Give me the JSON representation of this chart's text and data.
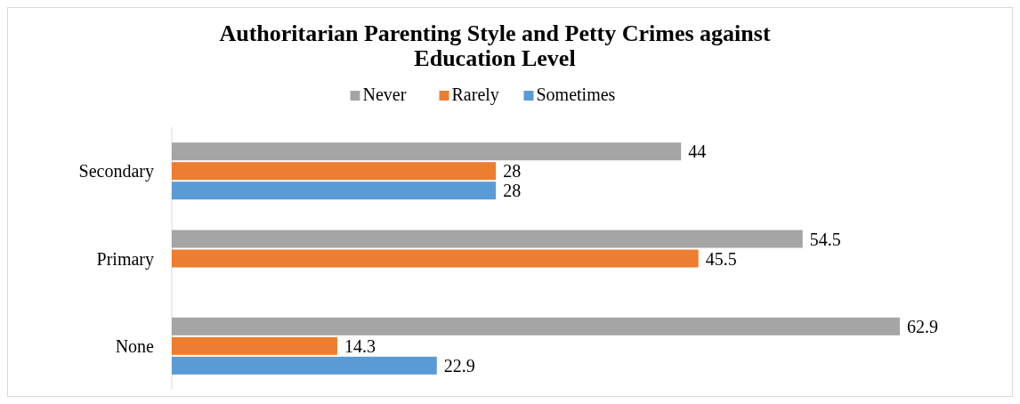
{
  "chart_data": {
    "type": "bar",
    "orientation": "horizontal",
    "title": "Authoritarian Parenting Style and Petty Crimes against Education Level",
    "categories": [
      "Secondary",
      "Primary",
      "None"
    ],
    "series": [
      {
        "name": "Never",
        "color": "#a5a5a5",
        "values": [
          44,
          54.5,
          62.9
        ]
      },
      {
        "name": "Rarely",
        "color": "#ed7d31",
        "values": [
          28,
          45.5,
          14.3
        ]
      },
      {
        "name": "Sometimes",
        "color": "#5b9bd5",
        "values": [
          28,
          null,
          22.9
        ]
      }
    ],
    "data_labels": true,
    "legend": "top"
  }
}
